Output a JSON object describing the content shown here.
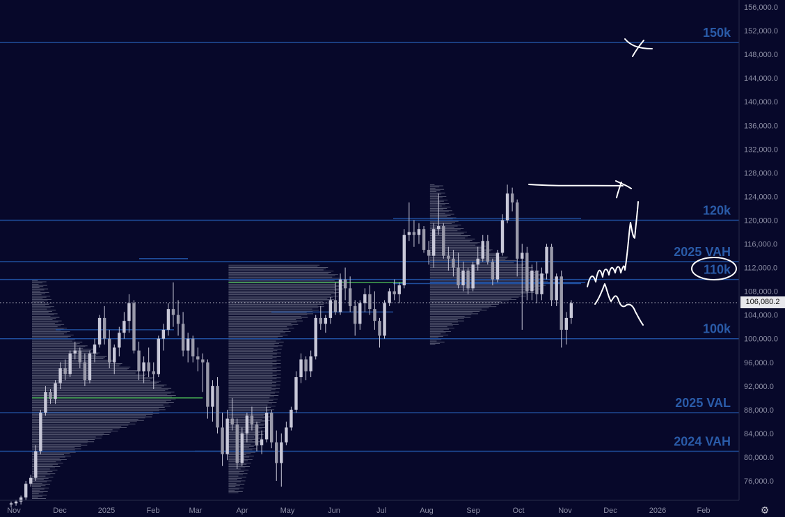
{
  "chart_data": {
    "type": "candlestick",
    "x_ticks": [
      "Nov",
      "Dec",
      "2025",
      "Feb",
      "Mar",
      "Apr",
      "May",
      "Jun",
      "Jul",
      "Aug",
      "Sep",
      "Oct",
      "Nov",
      "Dec",
      "2026",
      "Feb"
    ],
    "y_ticks": [
      "156,000.0",
      "152,000.0",
      "148,000.0",
      "144,000.0",
      "140,000.0",
      "136,000.0",
      "132,000.0",
      "128,000.0",
      "124,000.0",
      "120,000.0",
      "116,000.0",
      "112,000.0",
      "108,000.0",
      "104,000.0",
      "100,000.0",
      "96,000.0",
      "92,000.0",
      "88,000.0",
      "84,000.0",
      "80,000.0",
      "76,000.0"
    ],
    "ylim": [
      73000,
      157500
    ],
    "last_price": "106,080.2",
    "levels": [
      {
        "label": "150k",
        "value": 150000
      },
      {
        "label": "120k",
        "value": 120000
      },
      {
        "label": "2025 VAH",
        "value": 113000
      },
      {
        "label": "110k",
        "value": 110000
      },
      {
        "label": "100k",
        "value": 100000
      },
      {
        "label": "2025 VAL",
        "value": 87500
      },
      {
        "label": "2024 VAH",
        "value": 81000
      }
    ],
    "series": [
      {
        "values": [
          [
            72000,
            72500,
            71500,
            72200
          ],
          [
            72200,
            72800,
            71800,
            72500
          ],
          [
            72500,
            73500,
            72000,
            73200
          ],
          [
            73200,
            76000,
            72800,
            75500
          ],
          [
            75500,
            77000,
            75000,
            76500
          ],
          [
            76500,
            82000,
            76000,
            81000
          ],
          [
            81000,
            88000,
            80500,
            87500
          ],
          [
            87500,
            92000,
            87000,
            91000
          ],
          [
            91000,
            91500,
            89000,
            89800
          ],
          [
            89800,
            93000,
            89000,
            92500
          ],
          [
            92500,
            96000,
            91500,
            95000
          ],
          [
            95000,
            96500,
            93000,
            94000
          ],
          [
            94000,
            98000,
            93500,
            97500
          ],
          [
            97500,
            99500,
            96500,
            98000
          ],
          [
            98000,
            98500,
            95000,
            96000
          ],
          [
            96000,
            97500,
            92000,
            93000
          ],
          [
            93000,
            98000,
            92500,
            97500
          ],
          [
            97500,
            100000,
            96000,
            99000
          ],
          [
            99000,
            104000,
            98500,
            103500
          ],
          [
            103500,
            105500,
            99000,
            100000
          ],
          [
            100000,
            101500,
            95000,
            96000
          ],
          [
            96000,
            99000,
            94000,
            98500
          ],
          [
            98500,
            102000,
            97000,
            101000
          ],
          [
            101000,
            104500,
            100000,
            103000
          ],
          [
            103000,
            107500,
            101000,
            106000
          ],
          [
            106000,
            106500,
            97500,
            98000
          ],
          [
            98000,
            99500,
            93000,
            94500
          ],
          [
            94500,
            97000,
            92500,
            96000
          ],
          [
            96000,
            98500,
            93500,
            94500
          ],
          [
            94500,
            96000,
            91500,
            94000
          ],
          [
            94000,
            100500,
            93500,
            100000
          ],
          [
            100000,
            102500,
            98000,
            101500
          ],
          [
            101500,
            106000,
            100500,
            105000
          ],
          [
            105000,
            109500,
            102000,
            104000
          ],
          [
            104000,
            106500,
            100500,
            102500
          ],
          [
            102500,
            104500,
            97000,
            98000
          ],
          [
            98000,
            101000,
            96000,
            100000
          ],
          [
            100000,
            100500,
            96000,
            97000
          ],
          [
            97000,
            98500,
            94500,
            96500
          ],
          [
            96500,
            97500,
            91000,
            96000
          ],
          [
            96000,
            96500,
            86500,
            88500
          ],
          [
            88500,
            93000,
            86000,
            92000
          ],
          [
            92000,
            93500,
            84000,
            85000
          ],
          [
            85000,
            87500,
            78500,
            80500
          ],
          [
            80500,
            88000,
            79500,
            86500
          ],
          [
            86500,
            90000,
            84500,
            85500
          ],
          [
            85500,
            86500,
            78000,
            79000
          ],
          [
            79000,
            85000,
            78500,
            84000
          ],
          [
            84000,
            87500,
            82500,
            87000
          ],
          [
            87000,
            88500,
            84500,
            85500
          ],
          [
            85500,
            86000,
            81000,
            82000
          ],
          [
            82000,
            84500,
            80500,
            83000
          ],
          [
            83000,
            88500,
            82500,
            87500
          ],
          [
            87500,
            88000,
            81500,
            82500
          ],
          [
            82500,
            84500,
            76000,
            79000
          ],
          [
            79000,
            84000,
            75000,
            82500
          ],
          [
            82500,
            86000,
            82000,
            85000
          ],
          [
            85000,
            88500,
            84500,
            88000
          ],
          [
            88000,
            94500,
            87500,
            93500
          ],
          [
            93500,
            97500,
            92500,
            96500
          ],
          [
            96500,
            97000,
            93000,
            94500
          ],
          [
            94500,
            98000,
            93500,
            97000
          ],
          [
            97000,
            104000,
            96500,
            103500
          ],
          [
            103500,
            105500,
            101500,
            102500
          ],
          [
            102500,
            104000,
            101000,
            103500
          ],
          [
            103500,
            107000,
            102500,
            106500
          ],
          [
            106500,
            109500,
            104000,
            104500
          ],
          [
            104500,
            111000,
            104000,
            110000
          ],
          [
            110000,
            112000,
            106500,
            108500
          ],
          [
            108500,
            110500,
            104500,
            105500
          ],
          [
            105500,
            106500,
            100500,
            102500
          ],
          [
            102500,
            106500,
            101500,
            106000
          ],
          [
            106000,
            108500,
            104500,
            107500
          ],
          [
            107500,
            109000,
            104000,
            105000
          ],
          [
            105000,
            108000,
            101500,
            103000
          ],
          [
            103000,
            103500,
            98500,
            100500
          ],
          [
            100500,
            106500,
            100000,
            106000
          ],
          [
            106000,
            108500,
            105500,
            108000
          ],
          [
            108000,
            110000,
            106500,
            107500
          ],
          [
            107500,
            109500,
            106000,
            109000
          ],
          [
            109000,
            118500,
            108500,
            117500
          ],
          [
            117500,
            123000,
            116500,
            118000
          ],
          [
            118000,
            120000,
            115500,
            117500
          ],
          [
            117500,
            119500,
            116000,
            118500
          ],
          [
            118500,
            119000,
            114500,
            115000
          ],
          [
            115000,
            116500,
            112500,
            114000
          ],
          [
            114000,
            119500,
            112000,
            118500
          ],
          [
            118500,
            124500,
            117500,
            119000
          ],
          [
            119000,
            119500,
            113500,
            114000
          ],
          [
            114000,
            115500,
            111500,
            113500
          ],
          [
            113500,
            115000,
            110500,
            112000
          ],
          [
            112000,
            114500,
            108500,
            109000
          ],
          [
            109000,
            113000,
            108000,
            111500
          ],
          [
            111500,
            112000,
            107500,
            108500
          ],
          [
            108500,
            113000,
            108000,
            112500
          ],
          [
            112500,
            115500,
            111500,
            113500
          ],
          [
            113500,
            117500,
            113000,
            116500
          ],
          [
            116500,
            117500,
            112500,
            113000
          ],
          [
            113000,
            113500,
            109000,
            110000
          ],
          [
            110000,
            115000,
            109500,
            114500
          ],
          [
            114500,
            121000,
            114000,
            120000
          ],
          [
            120000,
            126000,
            119500,
            124500
          ],
          [
            124500,
            125500,
            121500,
            123000
          ],
          [
            123000,
            123500,
            110500,
            113500
          ],
          [
            113500,
            116000,
            101500,
            114500
          ],
          [
            114500,
            115500,
            106500,
            108000
          ],
          [
            108000,
            112500,
            106500,
            111500
          ],
          [
            111500,
            113000,
            106000,
            107500
          ],
          [
            107500,
            112000,
            106500,
            111000
          ],
          [
            111000,
            116000,
            110000,
            115500
          ],
          [
            115500,
            116000,
            105500,
            106500
          ],
          [
            106500,
            111000,
            105500,
            110500
          ],
          [
            110500,
            111500,
            98500,
            101500
          ],
          [
            101500,
            104500,
            99000,
            103500
          ],
          [
            103500,
            106500,
            102500,
            106000
          ]
        ]
      }
    ],
    "volume_profiles": [
      {
        "from_index": 0,
        "to_index": 39,
        "price_low": 73000,
        "price_high": 110000,
        "poc": 90000
      },
      {
        "from_index": 40,
        "to_index": 80,
        "price_low": 74000,
        "price_high": 112500,
        "poc": 109500
      },
      {
        "from_index": 81,
        "to_index": 114,
        "price_low": 99000,
        "price_high": 126000,
        "poc": 109500
      }
    ]
  },
  "icons": {
    "settings": "gear-icon"
  },
  "colors": {
    "background": "#07082a",
    "level_line": "#1f4d9b",
    "level_label": "#2a5ba8",
    "poc_line": "#3f9a4e",
    "candle": "#c8c8d8",
    "volume": "#8a8fa0",
    "axis_text": "#8d8fa5",
    "drawing": "#ffffff"
  }
}
